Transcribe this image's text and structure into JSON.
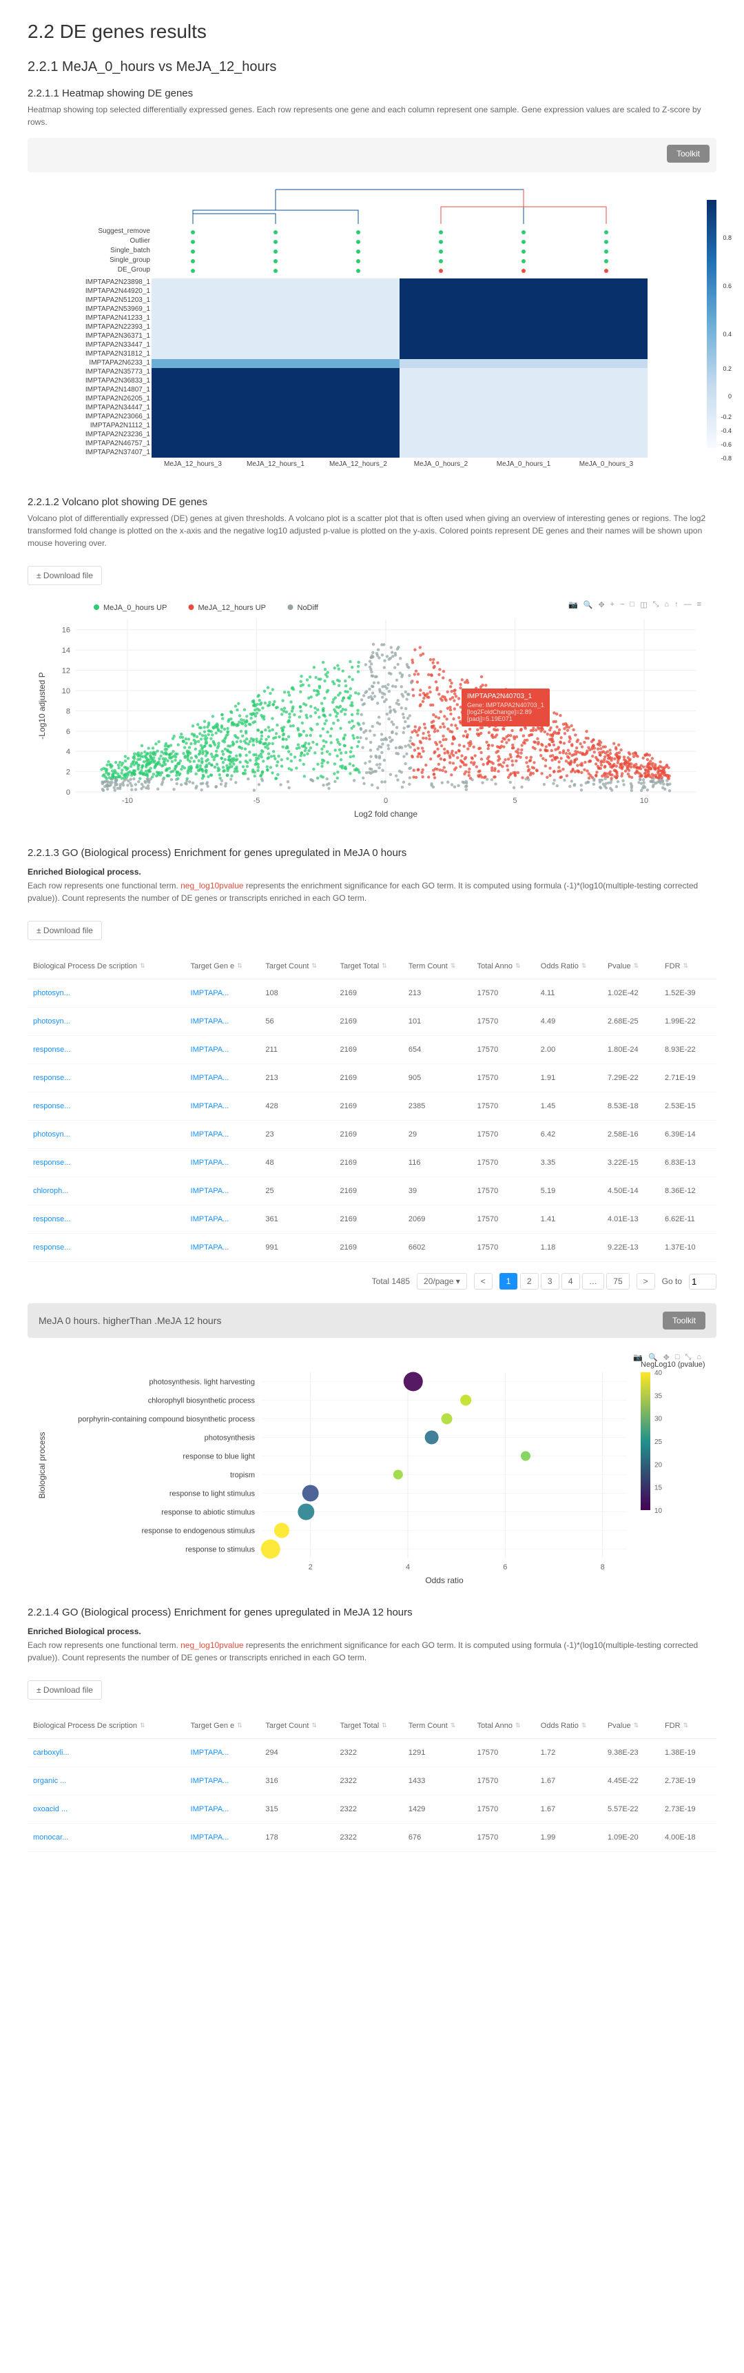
{
  "title": "2.2 DE genes results",
  "section1_title": "2.2.1 MeJA_0_hours vs MeJA_12_hours",
  "heatmap": {
    "title": "2.2.1.1 Heatmap showing DE genes",
    "desc": "Heatmap showing top selected differentially expressed genes. Each row represents one gene and each column represent one sample. Gene expression values are scaled to Z-score by rows.",
    "toolkit": "Toolkit",
    "annot_rows": [
      "Suggest_remove",
      "Outlier",
      "Single_batch",
      "Single_group",
      "DE_Group"
    ],
    "gene_rows": [
      "IMPTAPA2N23898_1",
      "IMPTAPA2N44920_1",
      "IMPTAPA2N51203_1",
      "IMPTAPA2N53969_1",
      "IMPTAPA2N41233_1",
      "IMPTAPA2N22393_1",
      "IMPTAPA2N36371_1",
      "IMPTAPA2N33447_1",
      "IMPTAPA2N31812_1",
      "IMPTAPA2N6233_1",
      "IMPTAPA2N35773_1",
      "IMPTAPA2N36833_1",
      "IMPTAPA2N14807_1",
      "IMPTAPA2N26205_1",
      "IMPTAPA2N34447_1",
      "IMPTAPA2N23066_1",
      "IMPTAPA2N1112_1",
      "IMPTAPA2N23236_1",
      "IMPTAPA2N46757_1",
      "IMPTAPA2N37407_1"
    ],
    "cols": [
      "MeJA_12_hours_3",
      "MeJA_12_hours_1",
      "MeJA_12_hours_2",
      "MeJA_0_hours_2",
      "MeJA_0_hours_1",
      "MeJA_0_hours_3"
    ],
    "colorbar": [
      {
        "v": "0.8",
        "y": 50
      },
      {
        "v": "0.6",
        "y": 120
      },
      {
        "v": "0.4",
        "y": 190
      },
      {
        "v": "0.2",
        "y": 240
      },
      {
        "v": "0",
        "y": 280
      },
      {
        "v": "-0.2",
        "y": 310
      },
      {
        "v": "-0.4",
        "y": 330
      },
      {
        "v": "-0.6",
        "y": 350
      },
      {
        "v": "-0.8",
        "y": 370
      }
    ]
  },
  "volcano": {
    "title": "2.2.1.2 Volcano plot showing DE genes",
    "desc": "Volcano plot of differentially expressed (DE) genes at given thresholds. A volcano plot is a scatter plot that is often used when giving an overview of interesting genes or regions. The log2 transformed fold change is plotted on the x-axis and the negative log10 adjusted p-value is plotted on the y-axis. Colored points represent DE genes and their names will be shown upon mouse hovering over.",
    "download": "± Download file",
    "legend": [
      {
        "label": "MeJA_0_hours UP",
        "color": "#2ecc71"
      },
      {
        "label": "MeJA_12_hours UP",
        "color": "#e74c3c"
      },
      {
        "label": "NoDiff",
        "color": "#95a5a6"
      }
    ],
    "xlabel": "Log2 fold change",
    "ylabel": "-Log10 adjusted P",
    "xticks": [
      -10,
      -5,
      0,
      5,
      10
    ],
    "yticks": [
      0,
      2,
      4,
      6,
      8,
      10,
      12,
      14,
      16
    ],
    "tooltip": {
      "gene": "IMPTAPA2N40703_1",
      "line2": "[log2FoldChange]=2.89",
      "line3": "[padj]=5.19E071"
    }
  },
  "go0": {
    "title": "2.2.1.3 GO (Biological process) Enrichment for genes upregulated in MeJA 0 hours",
    "enriched_title": "Enriched Biological process.",
    "desc_pre": "Each row represents one functional term. ",
    "desc_red": "neg_log10pvalue",
    "desc_post": " represents the enrichment significance for each GO term. It is computed using formula (-1)*(log10(multiple-testing corrected pvalue)). Count represents the number of DE genes or transcripts enriched in each GO term.",
    "download": "± Download file",
    "headers": [
      "Biological Process De scription",
      "Target Gen e",
      "Target Count",
      "Target Total",
      "Term Count",
      "Total Anno",
      "Odds Ratio",
      "Pvalue",
      "FDR"
    ],
    "rows": [
      [
        "photosyn...",
        "IMPTAPA...",
        "108",
        "2169",
        "213",
        "17570",
        "4.11",
        "1.02E-42",
        "1.52E-39"
      ],
      [
        "photosyn...",
        "IMPTAPA...",
        "56",
        "2169",
        "101",
        "17570",
        "4.49",
        "2.68E-25",
        "1.99E-22"
      ],
      [
        "response...",
        "IMPTAPA...",
        "211",
        "2169",
        "654",
        "17570",
        "2.00",
        "1.80E-24",
        "8.93E-22"
      ],
      [
        "response...",
        "IMPTAPA...",
        "213",
        "2169",
        "905",
        "17570",
        "1.91",
        "7.29E-22",
        "2.71E-19"
      ],
      [
        "response...",
        "IMPTAPA...",
        "428",
        "2169",
        "2385",
        "17570",
        "1.45",
        "8.53E-18",
        "2.53E-15"
      ],
      [
        "photosyn...",
        "IMPTAPA...",
        "23",
        "2169",
        "29",
        "17570",
        "6.42",
        "2.58E-16",
        "6.39E-14"
      ],
      [
        "response...",
        "IMPTAPA...",
        "48",
        "2169",
        "116",
        "17570",
        "3.35",
        "3.22E-15",
        "6.83E-13"
      ],
      [
        "chloroph...",
        "IMPTAPA...",
        "25",
        "2169",
        "39",
        "17570",
        "5.19",
        "4.50E-14",
        "8.36E-12"
      ],
      [
        "response...",
        "IMPTAPA...",
        "361",
        "2169",
        "2069",
        "17570",
        "1.41",
        "4.01E-13",
        "6.62E-11"
      ],
      [
        "response...",
        "IMPTAPA...",
        "991",
        "2169",
        "6602",
        "17570",
        "1.18",
        "9.22E-13",
        "1.37E-10"
      ]
    ],
    "total": "Total 1485",
    "perpage": "20/page",
    "pages": [
      "1",
      "2",
      "3",
      "4",
      "…",
      "75"
    ],
    "goto": "Go to",
    "goto_val": "1"
  },
  "scatter": {
    "title": "MeJA 0 hours. higherThan .MeJA 12 hours",
    "toolkit": "Toolkit",
    "ylabel": "Biological process",
    "xlabel": "Odds ratio",
    "legend_title": "NegLog10 (pvalue)",
    "xticks": [
      2,
      4,
      6,
      8
    ],
    "cbar_ticks": [
      40,
      35,
      30,
      25,
      20,
      15,
      10
    ],
    "terms": [
      "photosynthesis. light harvesting",
      "chlorophyll biosynthetic process",
      "porphyrin-containing compound biosynthetic process",
      "photosynthesis",
      "response to blue light",
      "tropism",
      "response to light stimulus",
      "response to abiotic stimulus",
      "response to endogenous stimulus",
      "response to stimulus"
    ],
    "points": [
      {
        "x": 4.11,
        "y": 0,
        "c": "#440154",
        "s": 14
      },
      {
        "x": 5.19,
        "y": 1,
        "c": "#c2df23",
        "s": 8
      },
      {
        "x": 4.8,
        "y": 2,
        "c": "#addc30",
        "s": 8
      },
      {
        "x": 4.49,
        "y": 3,
        "c": "#2c728e",
        "s": 10
      },
      {
        "x": 6.42,
        "y": 4,
        "c": "#7ad151",
        "s": 7
      },
      {
        "x": 3.8,
        "y": 5,
        "c": "#98d83e",
        "s": 7
      },
      {
        "x": 2.0,
        "y": 6,
        "c": "#3b528b",
        "s": 12
      },
      {
        "x": 1.91,
        "y": 7,
        "c": "#26828e",
        "s": 12
      },
      {
        "x": 1.41,
        "y": 8,
        "c": "#fde725",
        "s": 11
      },
      {
        "x": 1.18,
        "y": 9,
        "c": "#fde725",
        "s": 14
      }
    ]
  },
  "go12": {
    "title": "2.2.1.4 GO (Biological process) Enrichment for genes upregulated in MeJA 12 hours",
    "headers": [
      "Biological Process De scription",
      "Target Gen e",
      "Target Count",
      "Target Total",
      "Term Count",
      "Total Anno",
      "Odds Ratio",
      "Pvalue",
      "FDR"
    ],
    "rows": [
      [
        "carboxyli...",
        "IMPTAPA...",
        "294",
        "2322",
        "1291",
        "17570",
        "1.72",
        "9.38E-23",
        "1.38E-19"
      ],
      [
        "organic ...",
        "IMPTAPA...",
        "316",
        "2322",
        "1433",
        "17570",
        "1.67",
        "4.45E-22",
        "2.73E-19"
      ],
      [
        "oxoacid ...",
        "IMPTAPA...",
        "315",
        "2322",
        "1429",
        "17570",
        "1.67",
        "5.57E-22",
        "2.73E-19"
      ],
      [
        "monocar...",
        "IMPTAPA...",
        "178",
        "2322",
        "676",
        "17570",
        "1.99",
        "1.09E-20",
        "4.00E-18"
      ]
    ]
  }
}
